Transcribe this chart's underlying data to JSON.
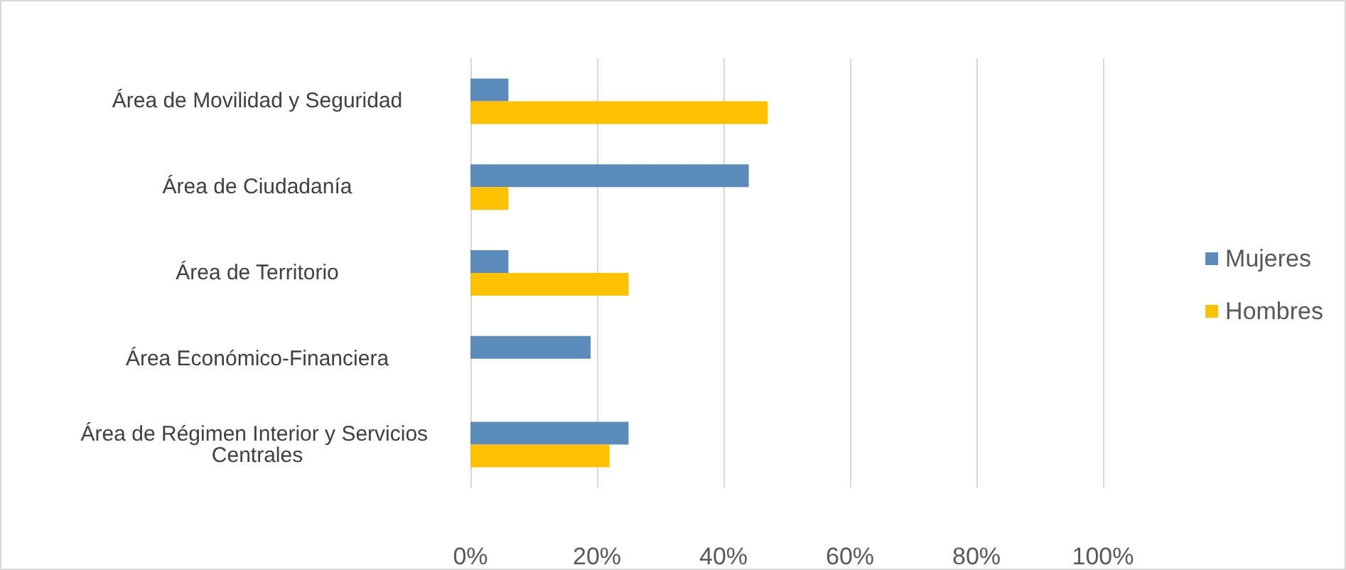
{
  "chart_data": {
    "type": "bar",
    "orientation": "horizontal",
    "categories": [
      "Área de Movilidad y Seguridad",
      "Área de Ciudadanía",
      "Área de Territorio",
      "Área Económico-Financiera",
      "Área de Régimen Interior y Servicios Centrales"
    ],
    "series": [
      {
        "name": "Mujeres",
        "color": "#5b8bb8",
        "values": [
          6,
          44,
          6,
          19,
          25
        ]
      },
      {
        "name": "Hombres",
        "color": "#ffc000",
        "values": [
          47,
          6,
          25,
          null,
          22
        ]
      }
    ],
    "xlim": [
      0,
      100
    ],
    "xticks": [
      {
        "value": 0,
        "label": "0%"
      },
      {
        "value": 20,
        "label": "20%"
      },
      {
        "value": 40,
        "label": "40%"
      },
      {
        "value": 60,
        "label": "60%"
      },
      {
        "value": 80,
        "label": "80%"
      },
      {
        "value": 100,
        "label": "100%"
      }
    ],
    "grid": "x",
    "legend": "right"
  }
}
